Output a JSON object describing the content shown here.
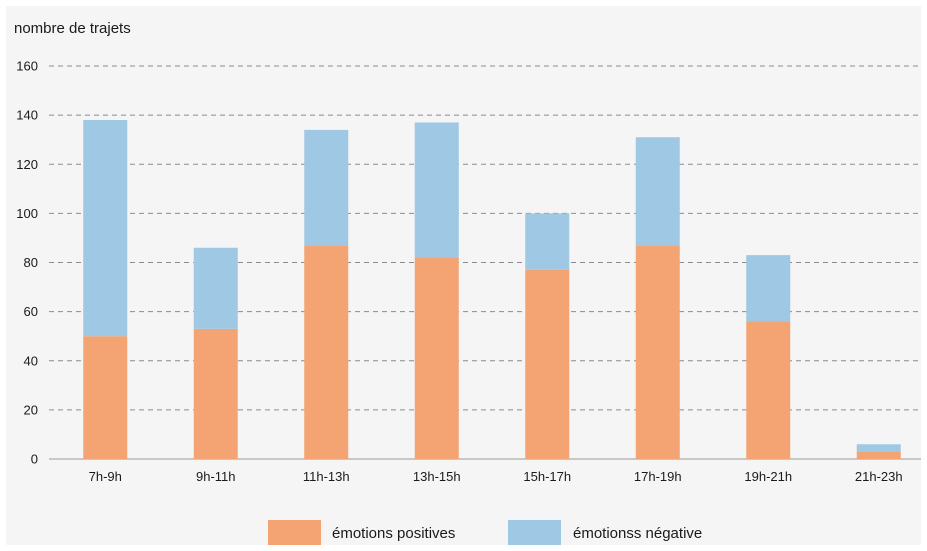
{
  "chart_data": {
    "type": "bar",
    "stacked": true,
    "title": "",
    "xlabel": "",
    "ylabel": "nombre de trajets",
    "ylim": [
      0,
      160
    ],
    "yticks": [
      0,
      20,
      40,
      60,
      80,
      100,
      120,
      140,
      160
    ],
    "grid": true,
    "legend_position": "bottom",
    "categories": [
      "7h-9h",
      "9h-11h",
      "11h-13h",
      "13h-15h",
      "15h-17h",
      "17h-19h",
      "19h-21h",
      "21h-23h"
    ],
    "series": [
      {
        "name": "émotions positives",
        "color": "#f4a372",
        "values": [
          50,
          53,
          87,
          82,
          77,
          87,
          56,
          3
        ]
      },
      {
        "name": "émotionss négative",
        "color": "#9ec8e3",
        "values": [
          88,
          33,
          47,
          55,
          23,
          44,
          27,
          3
        ]
      }
    ]
  }
}
